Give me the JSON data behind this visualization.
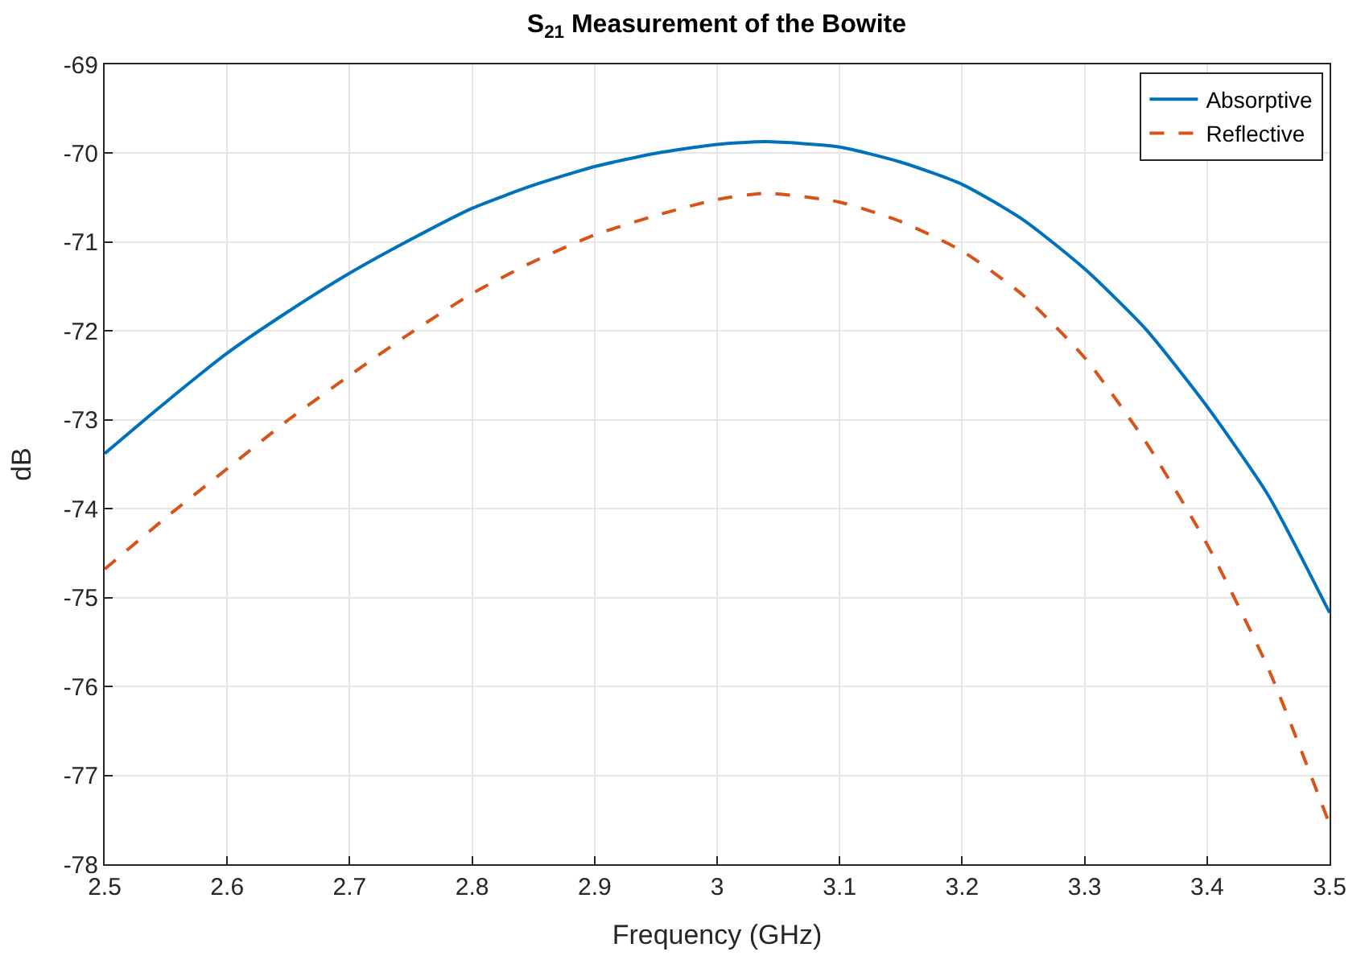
{
  "chart_data": {
    "type": "line",
    "title": "S$_{21}$ Measurement of the Bowite",
    "xlabel": "Frequency (GHz)",
    "ylabel": "dB",
    "x": [
      2.5,
      2.55,
      2.6,
      2.65,
      2.7,
      2.75,
      2.8,
      2.85,
      2.9,
      2.95,
      3.0,
      3.04,
      3.1,
      3.15,
      3.2,
      3.25,
      3.3,
      3.35,
      3.4,
      3.45,
      3.5
    ],
    "series": [
      {
        "name": "Absorptive",
        "color": "#0072bd",
        "line_style": "solid",
        "values": [
          -73.38,
          -72.8,
          -72.25,
          -71.78,
          -71.35,
          -70.97,
          -70.62,
          -70.36,
          -70.15,
          -70.0,
          -69.9,
          -69.87,
          -69.93,
          -70.1,
          -70.35,
          -70.75,
          -71.3,
          -71.98,
          -72.85,
          -73.85,
          -75.17
        ]
      },
      {
        "name": "Reflective",
        "color": "#d95319",
        "line_style": "dashed",
        "values": [
          -74.68,
          -74.1,
          -73.55,
          -73.0,
          -72.5,
          -72.02,
          -71.58,
          -71.22,
          -70.92,
          -70.7,
          -70.52,
          -70.45,
          -70.55,
          -70.77,
          -71.1,
          -71.6,
          -72.3,
          -73.25,
          -74.4,
          -75.8,
          -77.55
        ]
      }
    ],
    "xlim": [
      2.5,
      3.5
    ],
    "xticks": [
      2.5,
      2.6,
      2.7,
      2.8,
      2.9,
      3,
      3.1,
      3.2,
      3.3,
      3.4,
      3.5
    ],
    "ylim": [
      -78,
      -69
    ],
    "yticks": [
      -78,
      -77,
      -76,
      -75,
      -74,
      -73,
      -72,
      -71,
      -70,
      -69
    ],
    "grid": true,
    "legend": "top right",
    "marker": "none"
  }
}
